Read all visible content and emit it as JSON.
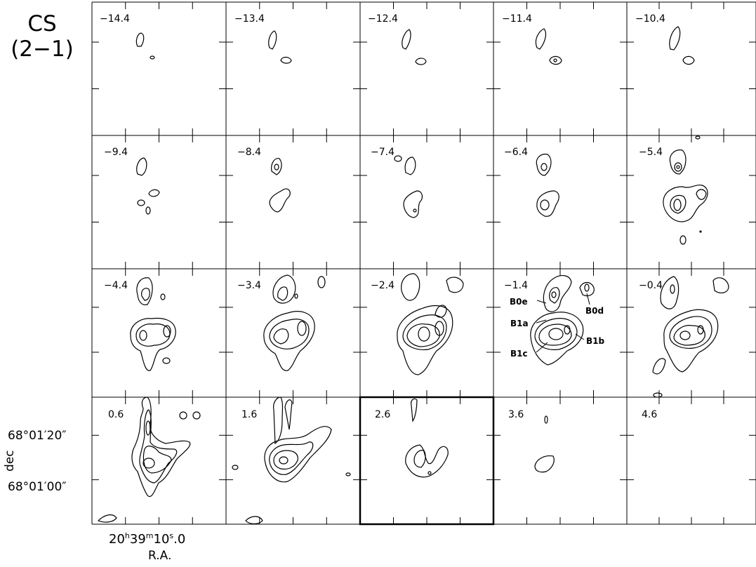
{
  "molecule": {
    "line1": "CS",
    "line2": "(2−1)"
  },
  "channels": [
    {
      "velocity": "−14.4"
    },
    {
      "velocity": "−13.4"
    },
    {
      "velocity": "−12.4"
    },
    {
      "velocity": "−11.4"
    },
    {
      "velocity": "−10.4"
    },
    {
      "velocity": "−9.4"
    },
    {
      "velocity": "−8.4"
    },
    {
      "velocity": "−7.4"
    },
    {
      "velocity": "−6.4"
    },
    {
      "velocity": "−5.4"
    },
    {
      "velocity": "−4.4"
    },
    {
      "velocity": "−3.4"
    },
    {
      "velocity": "−2.4"
    },
    {
      "velocity": "−1.4"
    },
    {
      "velocity": "−0.4"
    },
    {
      "velocity": "0.6"
    },
    {
      "velocity": "1.6"
    },
    {
      "velocity": "2.6"
    },
    {
      "velocity": "3.6"
    },
    {
      "velocity": "4.6"
    }
  ],
  "annotations": [
    "B0e",
    "B0d",
    "B1a",
    "B1b",
    "B1c"
  ],
  "axes": {
    "y_tick_1": "68°01′20″",
    "y_tick_2": "68°01′00″",
    "y_label": "dec",
    "x_tick_h": "20",
    "x_tick_h_unit": "h",
    "x_tick_m": "39",
    "x_tick_m_unit": "m",
    "x_tick_s": "10",
    "x_tick_s_unit": "s",
    "x_tick_frac": ".0",
    "x_label": "R.A."
  },
  "highlighted_panel_velocity": "2.6"
}
